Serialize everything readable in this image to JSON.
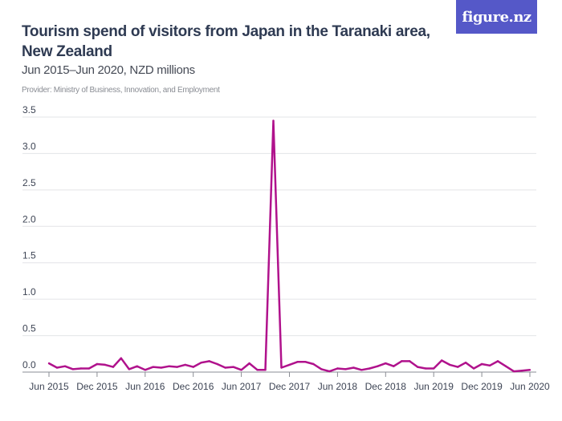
{
  "header": {
    "title": "Tourism spend of visitors from Japan in the Taranaki area, New Zealand",
    "subtitle": "Jun 2015–Jun 2020, NZD millions",
    "provider": "Provider: Ministry of Business, Innovation, and Employment",
    "logo_text": "figure.nz"
  },
  "chart_data": {
    "type": "line",
    "title": "Tourism spend of visitors from Japan in the Taranaki area, New Zealand",
    "subtitle": "Jun 2015–Jun 2020, NZD millions",
    "x_start": "Jun 2015",
    "x_end": "Jun 2020",
    "frequency": "monthly",
    "x_tick_labels": [
      "Jun 2015",
      "Dec 2015",
      "Jun 2016",
      "Dec 2016",
      "Jun 2017",
      "Dec 2017",
      "Jun 2018",
      "Dec 2018",
      "Jun 2019",
      "Dec 2019",
      "Jun 2020"
    ],
    "y_tick_labels": [
      "0.0",
      "0.5",
      "1.0",
      "1.5",
      "2.0",
      "2.5",
      "3.0",
      "3.5"
    ],
    "ylim": [
      0,
      3.5
    ],
    "grid": true,
    "line_color": "#b0128c",
    "values": [
      0.12,
      0.06,
      0.08,
      0.04,
      0.05,
      0.05,
      0.11,
      0.1,
      0.07,
      0.19,
      0.04,
      0.08,
      0.03,
      0.07,
      0.06,
      0.08,
      0.07,
      0.1,
      0.07,
      0.13,
      0.15,
      0.11,
      0.06,
      0.07,
      0.03,
      0.12,
      0.03,
      0.03,
      3.45,
      0.06,
      0.1,
      0.14,
      0.14,
      0.11,
      0.04,
      0.01,
      0.05,
      0.04,
      0.06,
      0.03,
      0.05,
      0.08,
      0.12,
      0.08,
      0.15,
      0.15,
      0.07,
      0.05,
      0.05,
      0.16,
      0.1,
      0.07,
      0.13,
      0.05,
      0.11,
      0.09,
      0.15,
      0.08,
      0.01,
      0.02,
      0.03
    ]
  }
}
